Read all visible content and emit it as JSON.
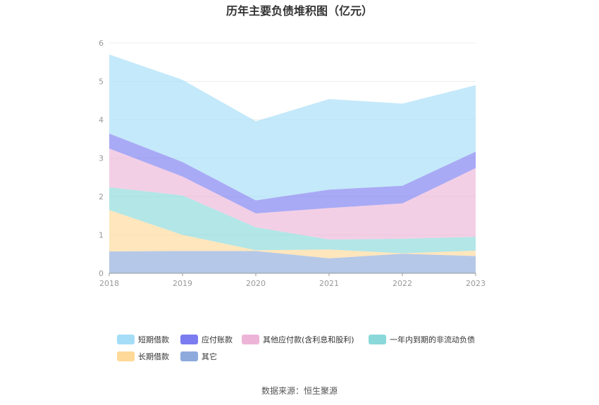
{
  "chart_data": {
    "type": "area",
    "stacked": true,
    "title": "历年主要负债堆积图（亿元）",
    "xlabel": "",
    "ylabel": "",
    "ylim": [
      0,
      6
    ],
    "yticks": [
      0,
      1,
      2,
      3,
      4,
      5,
      6
    ],
    "categories": [
      "2018",
      "2019",
      "2020",
      "2021",
      "2022",
      "2023"
    ],
    "grid": true,
    "legend_position": "bottom",
    "series": [
      {
        "name": "其它",
        "color": "#8eaadc",
        "values": [
          0.57,
          0.58,
          0.58,
          0.39,
          0.51,
          0.45
        ]
      },
      {
        "name": "长期借款",
        "color": "#ffd998",
        "values": [
          1.08,
          0.42,
          0.02,
          0.23,
          0.01,
          0.14
        ]
      },
      {
        "name": "一年内到期的非流动负债",
        "color": "#8ad8da",
        "values": [
          0.59,
          1.03,
          0.6,
          0.26,
          0.38,
          0.36
        ]
      },
      {
        "name": "其他应付款(含利息和股利)",
        "color": "#ecb5d8",
        "values": [
          1.01,
          0.49,
          0.36,
          0.82,
          0.92,
          1.79
        ]
      },
      {
        "name": "应付账款",
        "color": "#7b7cf0",
        "values": [
          0.39,
          0.38,
          0.34,
          0.48,
          0.46,
          0.43
        ]
      },
      {
        "name": "短期借款",
        "color": "#a5ddf7",
        "values": [
          2.06,
          2.14,
          2.06,
          2.36,
          2.14,
          1.73
        ]
      }
    ],
    "legend_order": [
      "短期借款",
      "应付账款",
      "其他应付款(含利息和股利)",
      "一年内到期的非流动负债",
      "长期借款",
      "其它"
    ]
  },
  "source_text": "数据来源：恒生聚源"
}
